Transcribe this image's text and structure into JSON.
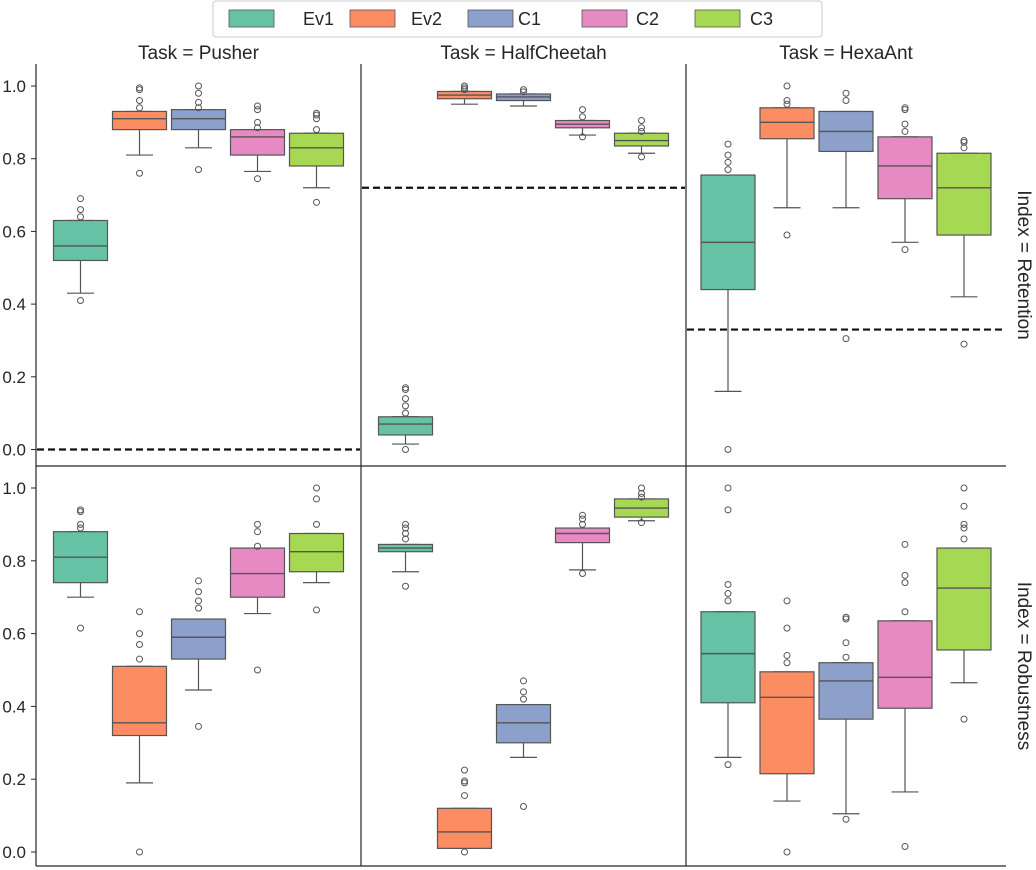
{
  "chart_data": {
    "type": "box",
    "facet_col_labels": [
      "Task = Pusher",
      "Task = HalfCheetah",
      "Task = HexaAnt"
    ],
    "facet_row_labels": [
      "Index = Retention",
      "Index = Robustness"
    ],
    "legend": {
      "entries": [
        {
          "name": "Ev1",
          "color": "#66c2a5"
        },
        {
          "name": "Ev2",
          "color": "#fc8d62"
        },
        {
          "name": "C1",
          "color": "#8da0cb"
        },
        {
          "name": "C2",
          "color": "#e78ac3"
        },
        {
          "name": "C3",
          "color": "#a6d854"
        }
      ],
      "placement": "top-center"
    },
    "y_ticks": [
      "0.0",
      "0.2",
      "0.4",
      "0.6",
      "0.8",
      "1.0"
    ],
    "ylim": [
      -0.04,
      1.05
    ],
    "grid": false,
    "panels": [
      {
        "row": 0,
        "col": 0,
        "baseline": 0.0,
        "boxes": [
          {
            "series": "Ev1",
            "whislo": 0.43,
            "q1": 0.52,
            "med": 0.56,
            "q3": 0.63,
            "whishi": 0.63,
            "fliers": [
              0.41,
              0.64,
              0.66,
              0.69
            ]
          },
          {
            "series": "Ev2",
            "whislo": 0.81,
            "q1": 0.88,
            "med": 0.91,
            "q3": 0.93,
            "whishi": 0.93,
            "fliers": [
              0.76,
              0.94,
              0.96,
              0.99,
              0.995
            ]
          },
          {
            "series": "C1",
            "whislo": 0.83,
            "q1": 0.88,
            "med": 0.91,
            "q3": 0.935,
            "whishi": 0.935,
            "fliers": [
              0.77,
              0.94,
              0.955,
              0.98,
              1.0
            ]
          },
          {
            "series": "C2",
            "whislo": 0.765,
            "q1": 0.81,
            "med": 0.86,
            "q3": 0.88,
            "whishi": 0.88,
            "fliers": [
              0.745,
              0.885,
              0.9,
              0.935,
              0.945
            ]
          },
          {
            "series": "C3",
            "whislo": 0.72,
            "q1": 0.78,
            "med": 0.83,
            "q3": 0.87,
            "whishi": 0.87,
            "fliers": [
              0.68,
              0.88,
              0.91,
              0.92,
              0.925
            ]
          }
        ]
      },
      {
        "row": 0,
        "col": 1,
        "baseline": 0.72,
        "boxes": [
          {
            "series": "Ev1",
            "whislo": 0.015,
            "q1": 0.04,
            "med": 0.07,
            "q3": 0.09,
            "whishi": 0.09,
            "fliers": [
              0.0,
              0.1,
              0.12,
              0.14,
              0.165,
              0.17
            ]
          },
          {
            "series": "Ev2",
            "whislo": 0.95,
            "q1": 0.965,
            "med": 0.975,
            "q3": 0.985,
            "whishi": 0.985,
            "fliers": [
              0.99,
              0.995,
              1.0
            ]
          },
          {
            "series": "C1",
            "whislo": 0.945,
            "q1": 0.96,
            "med": 0.97,
            "q3": 0.978,
            "whishi": 0.978,
            "fliers": [
              0.984,
              0.99
            ]
          },
          {
            "series": "C2",
            "whislo": 0.865,
            "q1": 0.885,
            "med": 0.895,
            "q3": 0.905,
            "whishi": 0.905,
            "fliers": [
              0.86,
              0.915,
              0.935
            ]
          },
          {
            "series": "C3",
            "whislo": 0.815,
            "q1": 0.835,
            "med": 0.85,
            "q3": 0.87,
            "whishi": 0.87,
            "fliers": [
              0.805,
              0.875,
              0.885,
              0.905
            ]
          }
        ]
      },
      {
        "row": 0,
        "col": 2,
        "baseline": 0.33,
        "boxes": [
          {
            "series": "Ev1",
            "whislo": 0.16,
            "q1": 0.44,
            "med": 0.57,
            "q3": 0.755,
            "whishi": 0.755,
            "fliers": [
              0.0,
              0.77,
              0.79,
              0.81,
              0.84
            ]
          },
          {
            "series": "Ev2",
            "whislo": 0.665,
            "q1": 0.855,
            "med": 0.9,
            "q3": 0.94,
            "whishi": 0.94,
            "fliers": [
              0.59,
              0.95,
              0.96,
              1.0
            ]
          },
          {
            "series": "C1",
            "whislo": 0.665,
            "q1": 0.82,
            "med": 0.875,
            "q3": 0.93,
            "whishi": 0.93,
            "fliers": [
              0.305,
              0.96,
              0.98
            ]
          },
          {
            "series": "C2",
            "whislo": 0.57,
            "q1": 0.69,
            "med": 0.78,
            "q3": 0.86,
            "whishi": 0.86,
            "fliers": [
              0.55,
              0.875,
              0.895,
              0.935,
              0.94
            ]
          },
          {
            "series": "C3",
            "whislo": 0.42,
            "q1": 0.59,
            "med": 0.72,
            "q3": 0.815,
            "whishi": 0.815,
            "fliers": [
              0.29,
              0.83,
              0.845,
              0.85
            ]
          }
        ]
      },
      {
        "row": 1,
        "col": 0,
        "baseline": null,
        "boxes": [
          {
            "series": "Ev1",
            "whislo": 0.7,
            "q1": 0.74,
            "med": 0.81,
            "q3": 0.88,
            "whishi": 0.88,
            "fliers": [
              0.615,
              0.89,
              0.9,
              0.935,
              0.94
            ]
          },
          {
            "series": "Ev2",
            "whislo": 0.19,
            "q1": 0.32,
            "med": 0.355,
            "q3": 0.51,
            "whishi": 0.51,
            "fliers": [
              0.0,
              0.53,
              0.57,
              0.6,
              0.66
            ]
          },
          {
            "series": "C1",
            "whislo": 0.445,
            "q1": 0.53,
            "med": 0.59,
            "q3": 0.64,
            "whishi": 0.64,
            "fliers": [
              0.345,
              0.67,
              0.69,
              0.715,
              0.745
            ]
          },
          {
            "series": "C2",
            "whislo": 0.655,
            "q1": 0.7,
            "med": 0.765,
            "q3": 0.835,
            "whishi": 0.835,
            "fliers": [
              0.5,
              0.84,
              0.88,
              0.9
            ]
          },
          {
            "series": "C3",
            "whislo": 0.74,
            "q1": 0.77,
            "med": 0.825,
            "q3": 0.875,
            "whishi": 0.875,
            "fliers": [
              0.665,
              0.9,
              0.97,
              1.0
            ]
          }
        ]
      },
      {
        "row": 1,
        "col": 1,
        "baseline": null,
        "boxes": [
          {
            "series": "Ev1",
            "whislo": 0.77,
            "q1": 0.825,
            "med": 0.835,
            "q3": 0.845,
            "whishi": 0.845,
            "fliers": [
              0.73,
              0.86,
              0.875,
              0.89,
              0.9
            ]
          },
          {
            "series": "Ev2",
            "whislo": 0.01,
            "q1": 0.01,
            "med": 0.055,
            "q3": 0.12,
            "whishi": 0.12,
            "fliers": [
              0.0,
              0.155,
              0.19,
              0.195,
              0.225
            ]
          },
          {
            "series": "C1",
            "whislo": 0.26,
            "q1": 0.3,
            "med": 0.355,
            "q3": 0.405,
            "whishi": 0.405,
            "fliers": [
              0.125,
              0.42,
              0.44,
              0.47
            ]
          },
          {
            "series": "C2",
            "whislo": 0.775,
            "q1": 0.85,
            "med": 0.875,
            "q3": 0.89,
            "whishi": 0.89,
            "fliers": [
              0.765,
              0.9,
              0.915,
              0.925
            ]
          },
          {
            "series": "C3",
            "whislo": 0.91,
            "q1": 0.92,
            "med": 0.945,
            "q3": 0.97,
            "whishi": 0.97,
            "fliers": [
              0.905,
              0.975,
              0.985,
              1.0
            ]
          }
        ]
      },
      {
        "row": 1,
        "col": 2,
        "baseline": null,
        "boxes": [
          {
            "series": "Ev1",
            "whislo": 0.26,
            "q1": 0.41,
            "med": 0.545,
            "q3": 0.66,
            "whishi": 0.66,
            "fliers": [
              0.24,
              0.69,
              0.71,
              0.735,
              0.94,
              1.0
            ]
          },
          {
            "series": "Ev2",
            "whislo": 0.14,
            "q1": 0.215,
            "med": 0.425,
            "q3": 0.495,
            "whishi": 0.495,
            "fliers": [
              0.0,
              0.52,
              0.54,
              0.615,
              0.69
            ]
          },
          {
            "series": "C1",
            "whislo": 0.105,
            "q1": 0.365,
            "med": 0.47,
            "q3": 0.52,
            "whishi": 0.52,
            "fliers": [
              0.09,
              0.535,
              0.575,
              0.64,
              0.645
            ]
          },
          {
            "series": "C2",
            "whislo": 0.165,
            "q1": 0.395,
            "med": 0.48,
            "q3": 0.635,
            "whishi": 0.635,
            "fliers": [
              0.015,
              0.66,
              0.74,
              0.76,
              0.845
            ]
          },
          {
            "series": "C3",
            "whislo": 0.465,
            "q1": 0.555,
            "med": 0.725,
            "q3": 0.835,
            "whishi": 0.835,
            "fliers": [
              0.365,
              0.86,
              0.89,
              0.9,
              0.95,
              1.0
            ]
          }
        ]
      }
    ]
  }
}
